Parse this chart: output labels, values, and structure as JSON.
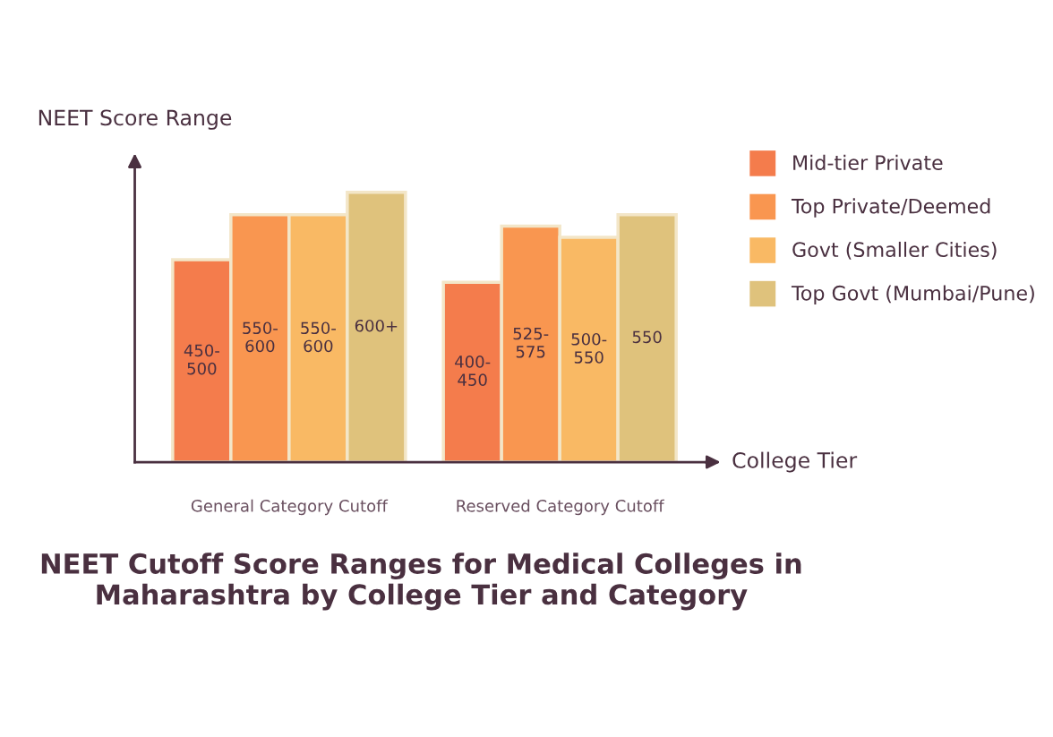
{
  "chart_data": {
    "type": "bar",
    "title": "NEET Cutoff Score Ranges for Medical Colleges in Maharashtra by College Tier and Category",
    "xlabel": "College Tier",
    "ylabel": "NEET Score Range",
    "categories": [
      "General Category Cutoff",
      "Reserved Category Cutoff"
    ],
    "tick_labels": "x",
    "legend": "right",
    "series": [
      {
        "name": "Mid-tier Private",
        "color": "#f47c4c",
        "values": [
          450,
          400
        ],
        "value_labels": [
          "450-500",
          "400-450"
        ]
      },
      {
        "name": "Top Private/Deemed",
        "color": "#f99650",
        "values": [
          550,
          525
        ],
        "value_labels": [
          "550-600",
          "525-575"
        ]
      },
      {
        "name": "Govt (Smaller Cities)",
        "color": "#f9b964",
        "values": [
          550,
          500
        ],
        "value_labels": [
          "550-600",
          "500-550"
        ]
      },
      {
        "name": "Top Govt (Mumbai/Pune)",
        "color": "#dfc27c",
        "values": [
          600,
          550
        ],
        "value_labels": [
          "600+",
          "550"
        ]
      }
    ]
  }
}
